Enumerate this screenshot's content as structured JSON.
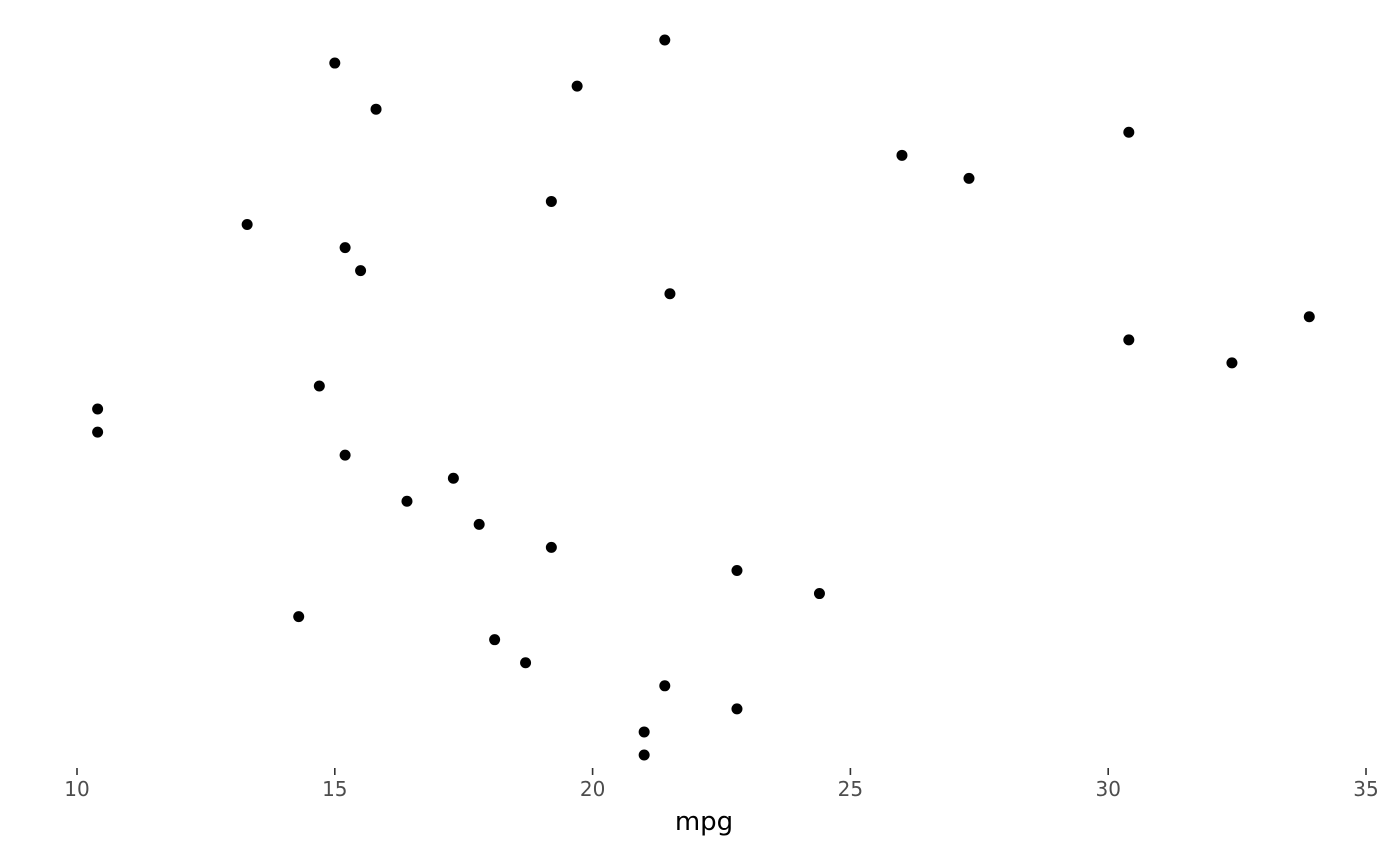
{
  "chart_data": {
    "type": "scatter",
    "title": "",
    "xlabel": "mpg",
    "ylabel": "",
    "xlim": [
      10,
      35
    ],
    "x_ticks": [
      10,
      15,
      20,
      25,
      30,
      35
    ],
    "x_tick_labels": [
      "10",
      "15",
      "20",
      "25",
      "30",
      "35"
    ],
    "grid": false,
    "legend": "none",
    "point_color": "#000000",
    "tick_color": "#333333",
    "y_note": "points ordered by row index, one per row, no y axis labels shown",
    "x": [
      21.4,
      15.0,
      19.7,
      15.8,
      30.4,
      26.0,
      27.3,
      19.2,
      13.3,
      15.2,
      15.5,
      21.5,
      33.9,
      30.4,
      32.4,
      14.7,
      10.4,
      10.4,
      15.2,
      17.3,
      16.4,
      17.8,
      19.2,
      22.8,
      24.4,
      14.3,
      18.1,
      18.7,
      21.4,
      22.8,
      21.0,
      21.0
    ],
    "y": [
      32,
      31,
      30,
      29,
      28,
      27,
      26,
      25,
      24,
      23,
      22,
      21,
      20,
      19,
      18,
      17,
      16,
      15,
      14,
      13,
      12,
      11,
      10,
      9,
      8,
      7,
      6,
      5,
      4,
      3,
      2,
      1
    ]
  }
}
